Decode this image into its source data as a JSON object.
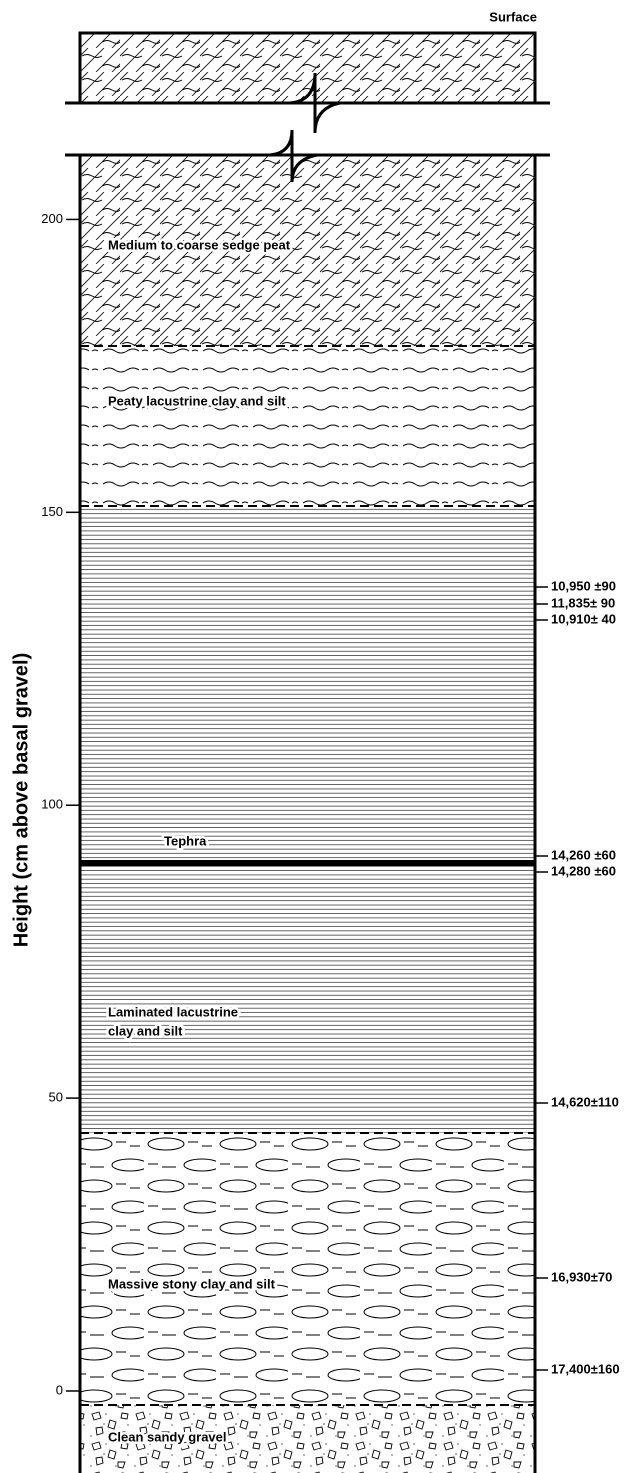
{
  "surface_label": "Surface",
  "axis": {
    "label": "Height (cm above basal gravel)",
    "ylim": [
      -14,
      211
    ],
    "yticks": [
      0,
      50,
      100,
      150,
      200
    ]
  },
  "layers": [
    {
      "label": "Medium to coarse sedge peat"
    },
    {
      "label": "Peaty lacustrine clay and silt"
    },
    {
      "label": "Tephra"
    },
    {
      "label": "Laminated lacustrine"
    },
    {
      "label": "clay and silt"
    },
    {
      "label": "Massive stony clay and silt"
    },
    {
      "label": "Clean sandy gravel"
    }
  ],
  "dates": [
    "10,950 ±90",
    "11,835± 90",
    "10,910± 40",
    "14,260 ±60",
    "14,280 ±60",
    "14,620±110",
    "16,930±70",
    "17,400±160"
  ]
}
